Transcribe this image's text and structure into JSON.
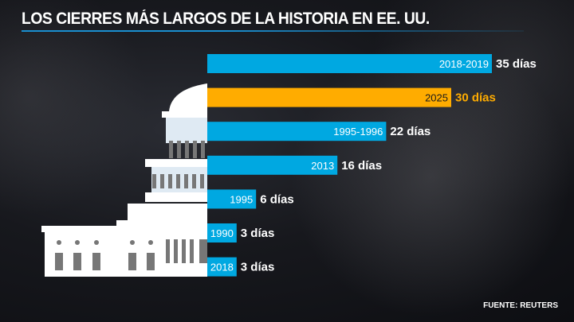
{
  "chart_data": {
    "type": "bar",
    "orientation": "horizontal",
    "title": "LOS CIERRES MÁS LARGOS DE LA HISTORIA EN EE. UU.",
    "categories": [
      "2018-2019",
      "2025",
      "1995-1996",
      "2013",
      "1995",
      "1990",
      "2018"
    ],
    "values": [
      35,
      30,
      22,
      16,
      6,
      3,
      3
    ],
    "value_labels": [
      "35 días",
      "30 días",
      "22 días",
      "16 días",
      "6 días",
      "3 días",
      "3 días"
    ],
    "highlight": "2025",
    "colors": {
      "default": "#00a8e1",
      "highlight": "#ffac00"
    }
  },
  "source": "FUENTE: REUTERS"
}
